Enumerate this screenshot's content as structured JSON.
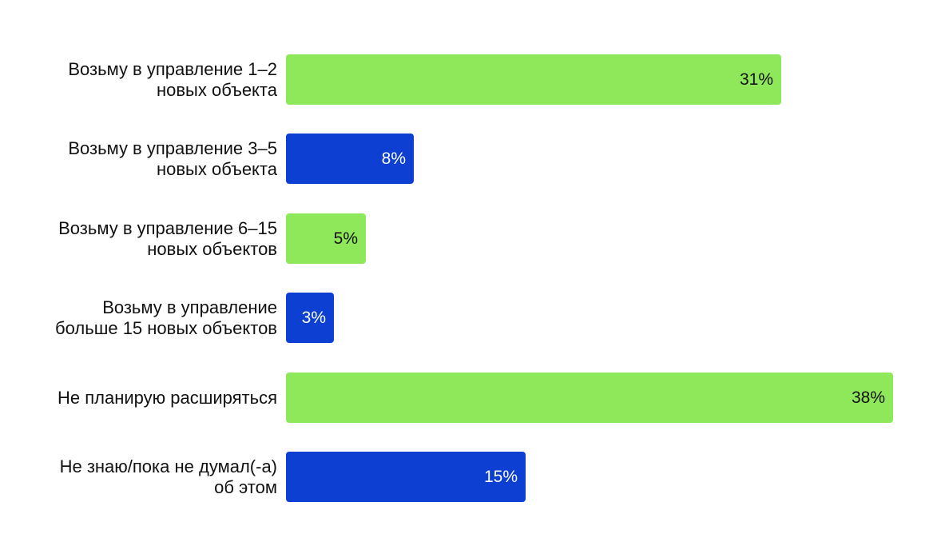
{
  "chart_data": {
    "type": "bar",
    "orientation": "horizontal",
    "categories": [
      "Возьму в управление 1–2 новых объекта",
      "Возьму в управление 3–5 новых объекта",
      "Возьму в управление 6–15 новых объектов",
      "Возьму в управление больше 15 новых объектов",
      "Не планирую расширяться",
      "Не знаю/пока не думал(-а) об этом"
    ],
    "values": [
      31,
      8,
      5,
      3,
      38,
      15
    ],
    "value_labels": [
      "31%",
      "8%",
      "5%",
      "3%",
      "38%",
      "15%"
    ],
    "bar_colors": [
      "#8ee85a",
      "#0e3fd3",
      "#8ee85a",
      "#0e3fd3",
      "#8ee85a",
      "#0e3fd3"
    ],
    "label_colors": [
      "#111111",
      "#ffffff",
      "#111111",
      "#ffffff",
      "#111111",
      "#ffffff"
    ],
    "xlim": [
      0,
      38
    ],
    "grid": false,
    "title": "",
    "xlabel": "",
    "ylabel": ""
  }
}
